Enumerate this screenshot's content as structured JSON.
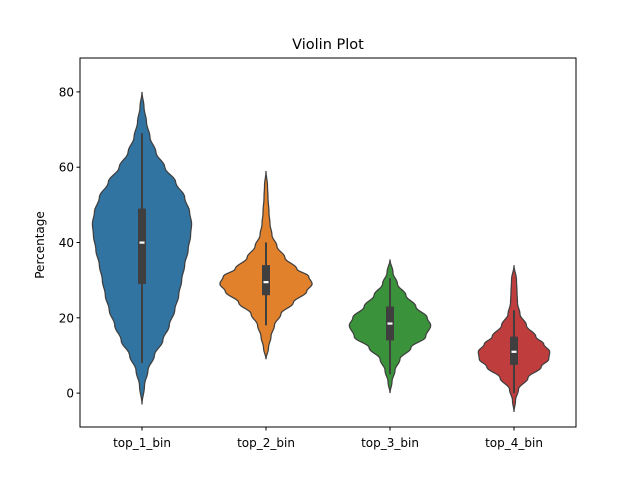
{
  "chart_data": {
    "type": "violin",
    "title": "Violin Plot",
    "xlabel": "",
    "ylabel": "Percentage",
    "ylim": [
      -9,
      89
    ],
    "yticks": [
      0,
      20,
      40,
      60,
      80
    ],
    "grid": false,
    "legend": "none",
    "categories": [
      "top_1_bin",
      "top_2_bin",
      "top_3_bin",
      "top_4_bin"
    ],
    "colors": [
      "#3274a1",
      "#e1812c",
      "#3a923a",
      "#c03d3e"
    ],
    "violins": [
      {
        "category": "top_1_bin",
        "min": -3,
        "max": 80,
        "whisker_low": 8,
        "whisker_high": 69,
        "q1": 29,
        "median": 40,
        "q3": 49,
        "profile": [
          [
            -3,
            0.0
          ],
          [
            2,
            0.05
          ],
          [
            6,
            0.12
          ],
          [
            10,
            0.25
          ],
          [
            14,
            0.42
          ],
          [
            18,
            0.55
          ],
          [
            22,
            0.66
          ],
          [
            26,
            0.74
          ],
          [
            30,
            0.8
          ],
          [
            34,
            0.86
          ],
          [
            38,
            0.93
          ],
          [
            42,
            0.98
          ],
          [
            45,
            1.0
          ],
          [
            48,
            0.96
          ],
          [
            52,
            0.86
          ],
          [
            56,
            0.68
          ],
          [
            60,
            0.46
          ],
          [
            64,
            0.28
          ],
          [
            68,
            0.16
          ],
          [
            72,
            0.09
          ],
          [
            76,
            0.04
          ],
          [
            80,
            0.0
          ]
        ]
      },
      {
        "category": "top_2_bin",
        "min": 9,
        "max": 59,
        "whisker_low": 18,
        "whisker_high": 40,
        "q1": 26,
        "median": 29.5,
        "q3": 34,
        "profile": [
          [
            9,
            0.0
          ],
          [
            12,
            0.05
          ],
          [
            15,
            0.1
          ],
          [
            18,
            0.17
          ],
          [
            21,
            0.3
          ],
          [
            24,
            0.55
          ],
          [
            27,
            0.82
          ],
          [
            29,
            0.93
          ],
          [
            31,
            0.86
          ],
          [
            33,
            0.62
          ],
          [
            36,
            0.38
          ],
          [
            39,
            0.22
          ],
          [
            42,
            0.12
          ],
          [
            45,
            0.08
          ],
          [
            48,
            0.06
          ],
          [
            52,
            0.04
          ],
          [
            55,
            0.03
          ],
          [
            59,
            0.0
          ]
        ]
      },
      {
        "category": "top_3_bin",
        "min": 0,
        "max": 35.5,
        "whisker_low": 5,
        "whisker_high": 30.5,
        "q1": 14,
        "median": 18.5,
        "q3": 23,
        "profile": [
          [
            0,
            0.0
          ],
          [
            3,
            0.04
          ],
          [
            6,
            0.1
          ],
          [
            9,
            0.2
          ],
          [
            12,
            0.42
          ],
          [
            15,
            0.72
          ],
          [
            18,
            0.82
          ],
          [
            20,
            0.75
          ],
          [
            23,
            0.52
          ],
          [
            26,
            0.32
          ],
          [
            29,
            0.15
          ],
          [
            32,
            0.06
          ],
          [
            35.5,
            0.0
          ]
        ]
      },
      {
        "category": "top_4_bin",
        "min": -5,
        "max": 34,
        "whisker_low": 0,
        "whisker_high": 22,
        "q1": 7.5,
        "median": 11,
        "q3": 15,
        "profile": [
          [
            -5,
            0.0
          ],
          [
            -2,
            0.03
          ],
          [
            1,
            0.09
          ],
          [
            4,
            0.28
          ],
          [
            7,
            0.55
          ],
          [
            9,
            0.7
          ],
          [
            11,
            0.72
          ],
          [
            13,
            0.6
          ],
          [
            15,
            0.44
          ],
          [
            18,
            0.25
          ],
          [
            21,
            0.12
          ],
          [
            24,
            0.07
          ],
          [
            27,
            0.06
          ],
          [
            30,
            0.05
          ],
          [
            34,
            0.0
          ]
        ]
      }
    ]
  }
}
